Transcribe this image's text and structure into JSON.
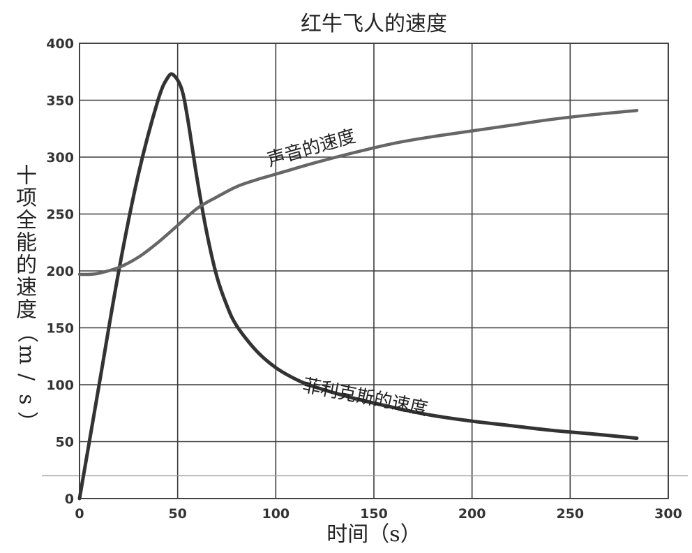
{
  "chart_data": {
    "type": "line",
    "title": "红牛飞人的速度",
    "xlabel": "时间（s）",
    "ylabel": "十项全能的速度（m/s）",
    "xlim": [
      0,
      300
    ],
    "ylim": [
      0,
      400
    ],
    "x_ticks": [
      "0",
      "50",
      "100",
      "150",
      "200",
      "250",
      "300"
    ],
    "y_ticks": [
      "0",
      "50",
      "100",
      "150",
      "200",
      "250",
      "300",
      "350",
      "400"
    ],
    "x_tick_values": [
      0,
      50,
      100,
      150,
      200,
      250,
      300
    ],
    "y_tick_values": [
      0,
      50,
      100,
      150,
      200,
      250,
      300,
      350,
      400
    ],
    "grid": true,
    "reference_line_y": 20,
    "series": [
      {
        "name": "菲利克斯的速度",
        "color": "#333333",
        "x": [
          0,
          10,
          20,
          30,
          40,
          45,
          48,
          52,
          55,
          60,
          65,
          70,
          75,
          80,
          90,
          100,
          110,
          120,
          140,
          160,
          180,
          200,
          220,
          240,
          260,
          284
        ],
        "y": [
          0,
          100,
          200,
          285,
          350,
          370,
          372,
          360,
          335,
          280,
          232,
          195,
          170,
          152,
          130,
          115,
          105,
          98,
          88,
          80,
          73,
          68,
          64,
          60,
          57,
          53
        ]
      },
      {
        "name": "声音的速度",
        "color": "#666666",
        "x": [
          0,
          5,
          10,
          20,
          30,
          40,
          50,
          60,
          70,
          80,
          90,
          100,
          120,
          140,
          160,
          180,
          200,
          220,
          240,
          260,
          284
        ],
        "y": [
          197,
          197,
          198,
          203,
          212,
          225,
          240,
          255,
          265,
          274,
          280,
          285,
          295,
          304,
          312,
          318,
          323,
          328,
          333,
          337,
          341
        ]
      }
    ],
    "annotations": [
      {
        "text": "声音的速度",
        "x": 119,
        "y": 303,
        "angle": -16
      },
      {
        "text": "菲利克斯的速度",
        "x": 145,
        "y": 84,
        "angle": 11
      }
    ]
  }
}
